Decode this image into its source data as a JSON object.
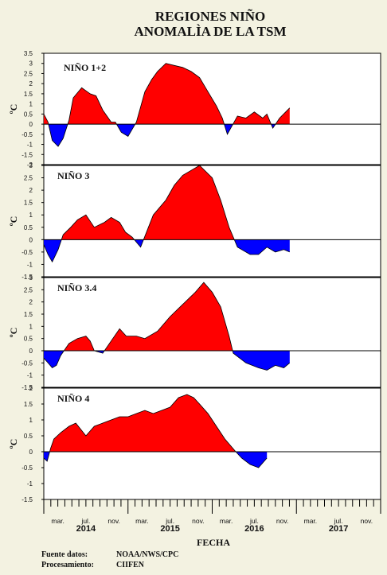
{
  "chart_data": {
    "type": "area",
    "title_line1": "REGIONES NIÑO",
    "title_line2": "ANOMALÌA DE LA TSM",
    "xlabel": "FECHA",
    "ylabel": "ºC",
    "x_months": [
      "mar.",
      "jul.",
      "nov.",
      "mar.",
      "jul.",
      "nov.",
      "mar.",
      "jul.",
      "nov.",
      "mar.",
      "jul.",
      "nov."
    ],
    "x_years": [
      "2014",
      "2015",
      "2016",
      "2017"
    ],
    "x_range": [
      "2014-01",
      "2017-12"
    ],
    "positive_color": "#ff0000",
    "negative_color": "#0000ff",
    "panels": [
      {
        "label": "NIÑO 1+2",
        "ylim": [
          -2,
          3.5
        ],
        "yticks": [
          "3.5",
          "3",
          "2.5",
          "2",
          "1.5",
          "1",
          "0.5",
          "0",
          "-0.5",
          "-1",
          "-1.5",
          "-2"
        ],
        "x": [
          2014.0,
          2014.05,
          2014.1,
          2014.17,
          2014.23,
          2014.3,
          2014.35,
          2014.45,
          2014.55,
          2014.62,
          2014.7,
          2014.8,
          2014.85,
          2014.92,
          2015.0,
          2015.1,
          2015.2,
          2015.28,
          2015.35,
          2015.45,
          2015.55,
          2015.65,
          2015.75,
          2015.85,
          2015.95,
          2016.05,
          2016.12,
          2016.18,
          2016.3,
          2016.4,
          2016.5,
          2016.6,
          2016.65,
          2016.72,
          2016.8,
          2016.92
        ],
        "y": [
          0.5,
          0.1,
          -0.8,
          -1.1,
          -0.7,
          0.2,
          1.3,
          1.8,
          1.5,
          1.4,
          0.7,
          0.1,
          0.1,
          -0.4,
          -0.6,
          0.1,
          1.6,
          2.2,
          2.6,
          3.0,
          2.9,
          2.8,
          2.6,
          2.3,
          1.6,
          0.9,
          0.3,
          -0.5,
          0.4,
          0.3,
          0.6,
          0.3,
          0.5,
          -0.2,
          0.3,
          0.8
        ]
      },
      {
        "label": "NIÑO 3",
        "ylim": [
          -1.5,
          3
        ],
        "yticks": [
          "3",
          "2.5",
          "2",
          "1.5",
          "1",
          "0.5",
          "0",
          "-0.5",
          "-1",
          "-1.5"
        ],
        "x": [
          2014.0,
          2014.05,
          2014.1,
          2014.17,
          2014.23,
          2014.32,
          2014.4,
          2014.5,
          2014.6,
          2014.72,
          2014.8,
          2014.9,
          2014.97,
          2015.05,
          2015.15,
          2015.3,
          2015.45,
          2015.55,
          2015.65,
          2015.75,
          2015.85,
          2016.0,
          2016.1,
          2016.2,
          2016.3,
          2016.45,
          2016.55,
          2016.65,
          2016.75,
          2016.85,
          2016.92
        ],
        "y": [
          -0.2,
          -0.6,
          -0.9,
          -0.4,
          0.2,
          0.5,
          0.8,
          1.0,
          0.5,
          0.7,
          0.9,
          0.7,
          0.3,
          0.1,
          -0.3,
          1.0,
          1.6,
          2.2,
          2.6,
          2.8,
          3.0,
          2.5,
          1.6,
          0.5,
          -0.3,
          -0.6,
          -0.6,
          -0.3,
          -0.5,
          -0.4,
          -0.5
        ]
      },
      {
        "label": "NIÑO 3.4",
        "ylim": [
          -1.5,
          3
        ],
        "yticks": [
          "3",
          "2.5",
          "2",
          "1.5",
          "1",
          "0.5",
          "0",
          "-0.5",
          "-1",
          "-1.5"
        ],
        "x": [
          2014.0,
          2014.05,
          2014.1,
          2014.15,
          2014.2,
          2014.3,
          2014.4,
          2014.5,
          2014.55,
          2014.6,
          2014.7,
          2014.8,
          2014.9,
          2014.98,
          2015.1,
          2015.2,
          2015.35,
          2015.5,
          2015.65,
          2015.8,
          2015.9,
          2016.0,
          2016.1,
          2016.2,
          2016.25,
          2016.4,
          2016.55,
          2016.65,
          2016.75,
          2016.85,
          2016.92
        ],
        "y": [
          -0.3,
          -0.5,
          -0.7,
          -0.6,
          -0.2,
          0.3,
          0.5,
          0.6,
          0.4,
          0.0,
          -0.1,
          0.4,
          0.9,
          0.6,
          0.6,
          0.5,
          0.8,
          1.4,
          1.9,
          2.4,
          2.8,
          2.4,
          1.8,
          0.6,
          -0.1,
          -0.5,
          -0.7,
          -0.8,
          -0.6,
          -0.7,
          -0.5
        ]
      },
      {
        "label": "NIÑO 4",
        "ylim": [
          -1.5,
          2
        ],
        "yticks": [
          "2",
          "1.5",
          "1",
          "0.5",
          "0",
          "-0.5",
          "-1",
          "-1.5"
        ],
        "x": [
          2014.0,
          2014.04,
          2014.08,
          2014.12,
          2014.2,
          2014.3,
          2014.38,
          2014.5,
          2014.6,
          2014.7,
          2014.8,
          2014.9,
          2015.0,
          2015.1,
          2015.2,
          2015.3,
          2015.4,
          2015.5,
          2015.6,
          2015.7,
          2015.78,
          2015.85,
          2015.95,
          2016.05,
          2016.15,
          2016.28,
          2016.35,
          2016.45,
          2016.55,
          2016.65
        ],
        "y": [
          -0.2,
          -0.3,
          0.1,
          0.4,
          0.6,
          0.8,
          0.9,
          0.5,
          0.8,
          0.9,
          1.0,
          1.1,
          1.1,
          1.2,
          1.3,
          1.2,
          1.3,
          1.4,
          1.7,
          1.8,
          1.7,
          1.5,
          1.2,
          0.8,
          0.4,
          0.0,
          -0.2,
          -0.4,
          -0.5,
          -0.2
        ]
      }
    ]
  },
  "source": {
    "label1": "Fuente datos:",
    "value1": "NOAA/NWS/CPC",
    "label2": "Procesamiento:",
    "value2": "CIIFEN"
  }
}
